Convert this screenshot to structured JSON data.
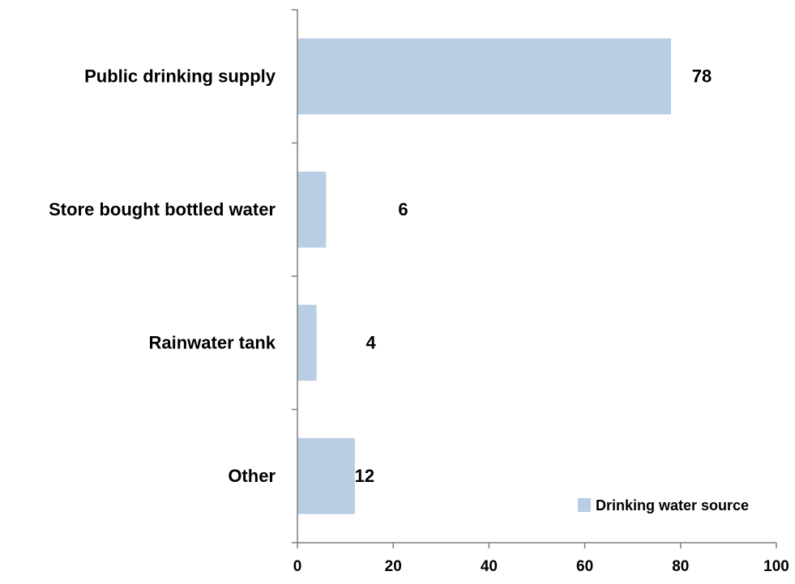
{
  "chart_data": {
    "type": "bar",
    "orientation": "horizontal",
    "categories": [
      "Public drinking supply",
      "Store bought bottled water",
      "Rainwater tank",
      "Other"
    ],
    "series": [
      {
        "name": "Drinking water source",
        "values": [
          78,
          6,
          4,
          12
        ],
        "color": "#b9cde5"
      }
    ],
    "data_labels": [
      "78",
      "6",
      "4",
      "12"
    ],
    "xlim": [
      0,
      100
    ],
    "x_ticks": [
      "0",
      "20",
      "40",
      "60",
      "80",
      "100"
    ],
    "xlabel": "",
    "ylabel": "",
    "title": "",
    "grid": false,
    "legend_position": "bottom-right"
  }
}
